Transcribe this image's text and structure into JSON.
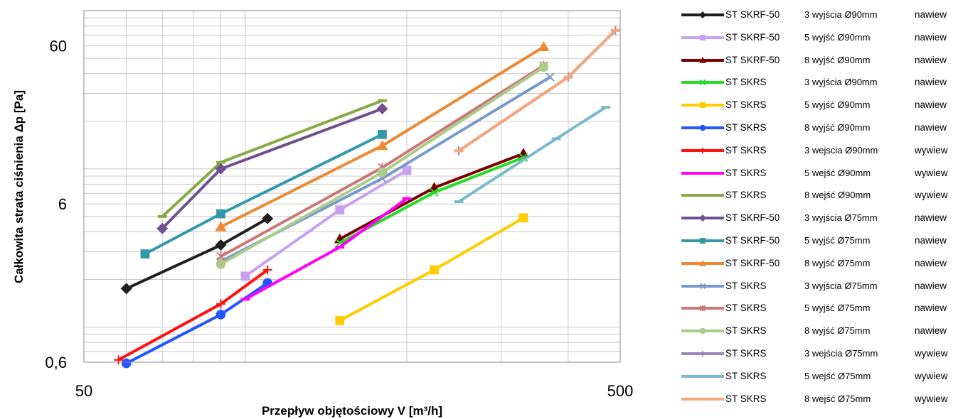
{
  "chart_data": {
    "type": "line",
    "title": "",
    "xlabel": "Przepływ objętościowy V [m³/h]",
    "ylabel": "Całkowita strata ciśnienia Δp [Pa]",
    "xscale": "log",
    "yscale": "log",
    "xlim": [
      50,
      500
    ],
    "ylim": [
      0.6,
      100
    ],
    "x_ticks": [
      "50",
      "500"
    ],
    "y_ticks": [
      "0,6",
      "6",
      "60"
    ],
    "grid": true,
    "legend_position": "right",
    "series": [
      {
        "name": "ST SKRF-50",
        "outlets": "3 wyjścia Ø90mm",
        "flow": "nawiew",
        "color": "#1f1f1f",
        "marker": "diamond",
        "x": [
          60,
          90,
          110
        ],
        "y": [
          1.75,
          3.3,
          4.85
        ]
      },
      {
        "name": "ST SKRF-50",
        "outlets": "5 wyjść  Ø90mm",
        "flow": "nawiew",
        "color": "#c8a0f0",
        "marker": "square",
        "x": [
          100,
          150,
          200
        ],
        "y": [
          2.1,
          5.5,
          9.8
        ]
      },
      {
        "name": "ST SKRF-50",
        "outlets": "8 wyjść  Ø90mm",
        "flow": "nawiew",
        "color": "#7a0000",
        "marker": "triangle",
        "x": [
          150,
          225,
          330
        ],
        "y": [
          3.6,
          7.6,
          12.5
        ]
      },
      {
        "name": "ST SKRS",
        "outlets": "3 wyjścia  Ø90mm",
        "flow": "nawiew",
        "color": "#22dd22",
        "marker": "x",
        "x": [
          150,
          225,
          330
        ],
        "y": [
          3.4,
          7.1,
          11.8
        ]
      },
      {
        "name": "ST SKRS",
        "outlets": "5 wyjść  Ø90mm",
        "flow": "nawiew",
        "color": "#ffcc00",
        "marker": "square",
        "x": [
          150,
          225,
          330
        ],
        "y": [
          1.1,
          2.3,
          4.9
        ]
      },
      {
        "name": "ST SKRS",
        "outlets": "8 wyjść  Ø90mm",
        "flow": "nawiew",
        "color": "#2255ff",
        "marker": "circle",
        "x": [
          60,
          90,
          110
        ],
        "y": [
          0.59,
          1.2,
          1.9
        ]
      },
      {
        "name": "ST SKRS",
        "outlets": "3 wejscia  Ø90mm",
        "flow": "wywiew",
        "color": "#ff1111",
        "marker": "plus",
        "x": [
          58,
          90,
          110
        ],
        "y": [
          0.62,
          1.4,
          2.3
        ]
      },
      {
        "name": "ST SKRS",
        "outlets": "5 wejść  Ø90mm",
        "flow": "wywiew",
        "color": "#ff00ff",
        "marker": "dash",
        "x": [
          100,
          150,
          200
        ],
        "y": [
          1.5,
          3.2,
          6.5
        ]
      },
      {
        "name": "ST SKRS",
        "outlets": "8 wejść  Ø90mm",
        "flow": "wywiew",
        "color": "#88aa44",
        "marker": "dash",
        "x": [
          70,
          90,
          180
        ],
        "y": [
          5.0,
          11.0,
          27.0
        ]
      },
      {
        "name": "ST SKRF-50",
        "outlets": "3 wyjścia  Ø75mm",
        "flow": "nawiew",
        "color": "#705090",
        "marker": "diamond",
        "x": [
          70,
          90,
          180
        ],
        "y": [
          4.2,
          10.0,
          24.0
        ]
      },
      {
        "name": "ST SKRF-50",
        "outlets": "5 wyjść  Ø75mm",
        "flow": "nawiew",
        "color": "#3399aa",
        "marker": "square",
        "x": [
          65,
          90,
          180
        ],
        "y": [
          2.9,
          5.2,
          16.5
        ]
      },
      {
        "name": "ST SKRF-50",
        "outlets": "8 wyjść Ø75mm",
        "flow": "nawiew",
        "color": "#ee8833",
        "marker": "triangle",
        "x": [
          90,
          180,
          360
        ],
        "y": [
          4.3,
          14.0,
          59.0
        ]
      },
      {
        "name": "ST SKRS",
        "outlets": "3 wyjścia Ø75mm",
        "flow": "nawiew",
        "color": "#7799cc",
        "marker": "x",
        "x": [
          90,
          180,
          370
        ],
        "y": [
          2.6,
          8.7,
          38.0
        ]
      },
      {
        "name": "ST SKRS",
        "outlets": "5 wyjść Ø75mm",
        "flow": "nawiew",
        "color": "#cc7777",
        "marker": "star",
        "x": [
          90,
          180,
          360
        ],
        "y": [
          2.8,
          10.2,
          45.0
        ]
      },
      {
        "name": "ST SKRS",
        "outlets": "8 wyjść Ø75mm",
        "flow": "nawiew",
        "color": "#aacc88",
        "marker": "circle",
        "x": [
          90,
          180,
          360
        ],
        "y": [
          2.5,
          9.5,
          44.0
        ]
      },
      {
        "name": "ST SKRS",
        "outlets": "3 wejścia Ø75mm",
        "flow": "wywiew",
        "color": "#9988bb",
        "marker": "plus",
        "x": [
          250,
          400,
          490
        ],
        "y": [
          13.0,
          38.0,
          75.0
        ]
      },
      {
        "name": "ST SKRS",
        "outlets": "5 wejść Ø75mm",
        "flow": "wywiew",
        "color": "#77bbcc",
        "marker": "dash",
        "x": [
          250,
          380,
          470
        ],
        "y": [
          6.2,
          15.5,
          24.5
        ]
      },
      {
        "name": "ST SKRS",
        "outlets": "8 wejść Ø75mm",
        "flow": "wywiew",
        "color": "#f4a67a",
        "marker": "dash",
        "x": [
          250,
          400,
          490
        ],
        "y": [
          13.0,
          38.0,
          75.0
        ]
      }
    ]
  }
}
